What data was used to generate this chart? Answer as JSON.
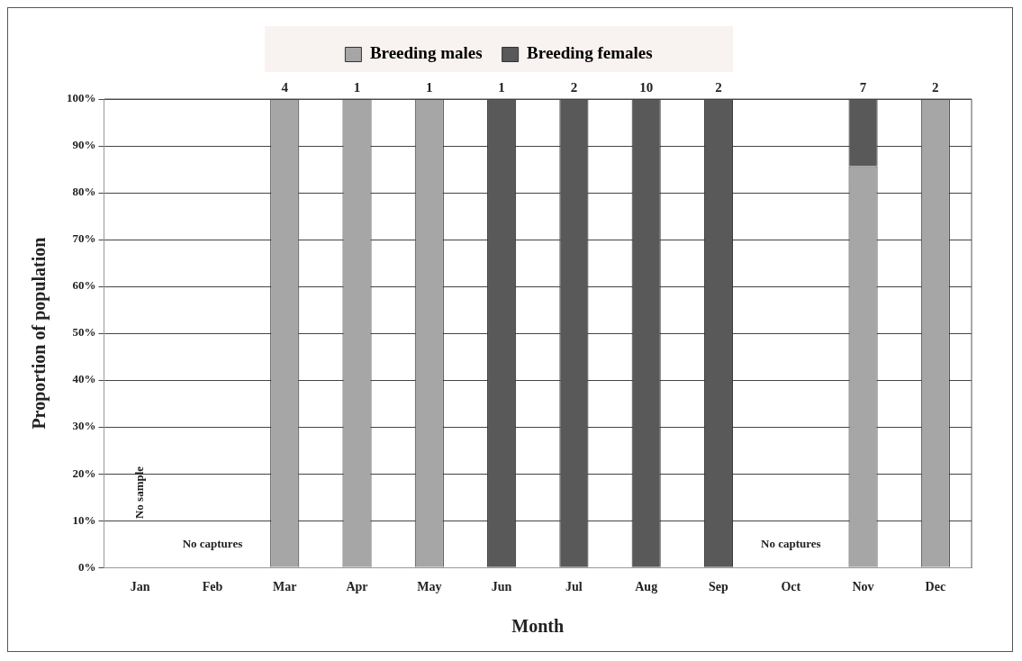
{
  "chart_data": {
    "type": "bar",
    "stacked": true,
    "xlabel": "Month",
    "ylabel": "Proportion of population",
    "categories": [
      "Jan",
      "Feb",
      "Mar",
      "Apr",
      "May",
      "Jun",
      "Jul",
      "Aug",
      "Sep",
      "Oct",
      "Nov",
      "Dec"
    ],
    "series": [
      {
        "name": "Breeding males",
        "color": "#a6a6a6",
        "values": [
          null,
          null,
          100,
          100,
          100,
          0,
          0,
          0,
          0,
          null,
          85.7,
          100
        ]
      },
      {
        "name": "Breeding females",
        "color": "#595959",
        "values": [
          null,
          null,
          0,
          0,
          0,
          100,
          100,
          100,
          100,
          null,
          14.3,
          0
        ]
      }
    ],
    "ylim": [
      0,
      100
    ],
    "yticks": [
      {
        "value": 0,
        "label": "0%"
      },
      {
        "value": 10,
        "label": "10%"
      },
      {
        "value": 20,
        "label": "20%"
      },
      {
        "value": 30,
        "label": "30%"
      },
      {
        "value": 40,
        "label": "40%"
      },
      {
        "value": 50,
        "label": "50%"
      },
      {
        "value": 60,
        "label": "60%"
      },
      {
        "value": 70,
        "label": "70%"
      },
      {
        "value": 80,
        "label": "80%"
      },
      {
        "value": 90,
        "label": "90%"
      },
      {
        "value": 100,
        "label": "100%"
      }
    ],
    "grid": "y",
    "legend": "top",
    "annotations": [
      "No sample",
      "No captures",
      "No captures",
      {
        "text": "4",
        "x": "Mar",
        "y": 100
      },
      {
        "text": "1",
        "x": "Apr",
        "y": 100
      },
      {
        "text": "1",
        "x": "May",
        "y": 100
      },
      {
        "text": "1",
        "x": "Jun",
        "y": 100
      },
      {
        "text": "2",
        "x": "Jul",
        "y": 100
      },
      {
        "text": "10",
        "x": "Aug",
        "y": 100
      },
      {
        "text": "2",
        "x": "Sep",
        "y": 100
      },
      {
        "text": "7",
        "x": "Nov",
        "y": 100
      },
      {
        "text": "2",
        "x": "Dec",
        "y": 100
      }
    ]
  }
}
